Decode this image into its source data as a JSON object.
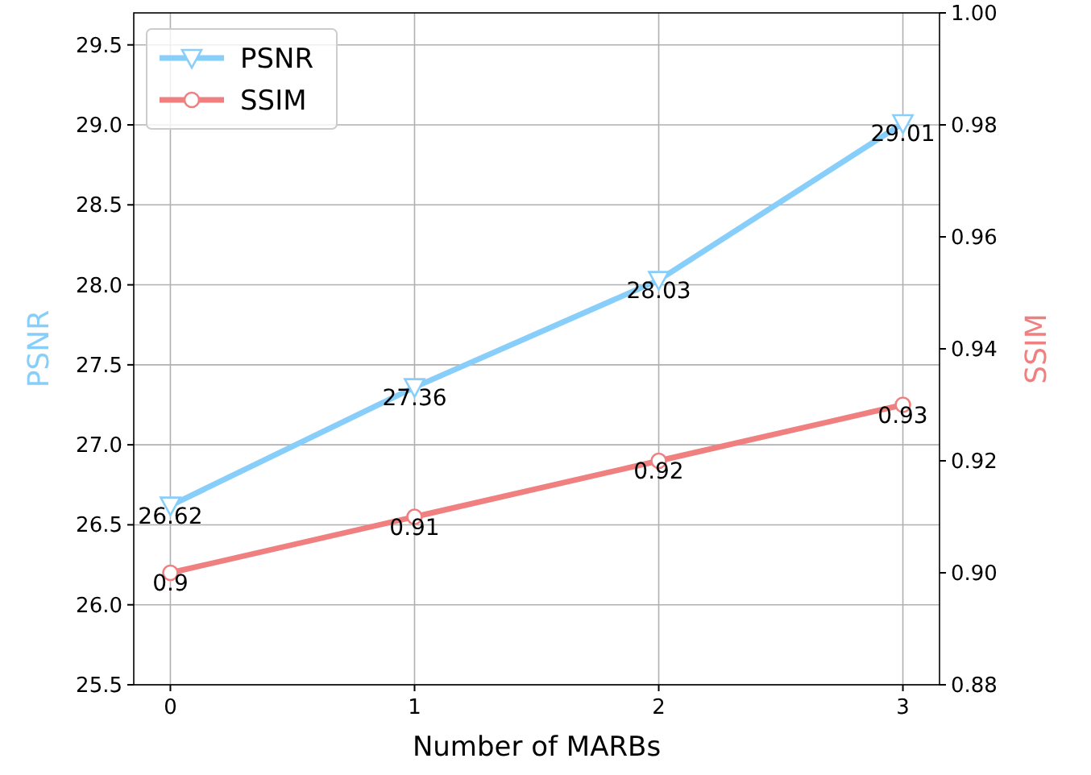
{
  "chart_data": {
    "type": "line",
    "xlabel": "Number of MARBs",
    "ylabel": "PSNR",
    "y2label": "SSIM",
    "x": [
      0,
      1,
      2,
      3
    ],
    "xlim": [
      -0.15,
      3.15
    ],
    "xticks": [
      0,
      1,
      2,
      3
    ],
    "ylim": [
      25.5,
      29.7
    ],
    "yticks": [
      25.5,
      {
        "value": 26,
        "label": "26.0"
      },
      26.5,
      {
        "value": 27,
        "label": "27.0"
      },
      27.5,
      {
        "value": 28,
        "label": "28.0"
      },
      28.5,
      {
        "value": 29,
        "label": "29.0"
      },
      29.5
    ],
    "y2lim": [
      0.88,
      1.0
    ],
    "y2ticks": [
      {
        "value": 0.88,
        "label": "0.88"
      },
      {
        "value": 0.9,
        "label": "0.90"
      },
      {
        "value": 0.92,
        "label": "0.92"
      },
      {
        "value": 0.94,
        "label": "0.94"
      },
      {
        "value": 0.96,
        "label": "0.96"
      },
      {
        "value": 0.98,
        "label": "0.98"
      },
      {
        "value": 1.0,
        "label": "1.00"
      }
    ],
    "series": [
      {
        "name": "PSNR",
        "color": "#87cefa",
        "values": [
          26.62,
          27.36,
          28.03,
          29.01
        ],
        "marker": "triangle"
      },
      {
        "name": "SSIM",
        "color": "#f08080",
        "values": [
          0.9,
          0.91,
          0.92,
          0.93
        ],
        "axis": "y2",
        "marker": "circle"
      }
    ],
    "data_labels": true,
    "grid": true,
    "legend": "top left"
  }
}
